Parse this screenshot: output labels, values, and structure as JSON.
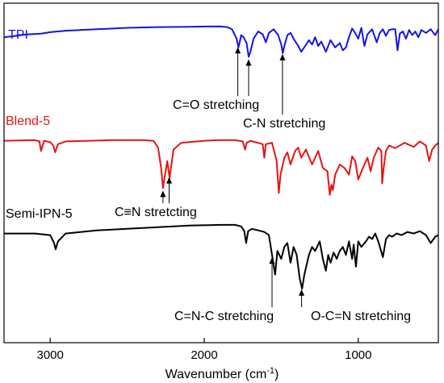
{
  "chart_data": {
    "type": "line",
    "title": "",
    "xlabel": "Wavenumber (cm",
    "xlabel_sup": "-1",
    "xlabel_close": ")",
    "ylabel": "",
    "xlim": [
      3300,
      480
    ],
    "x_reversed": true,
    "grid": false,
    "legend": "none",
    "xticks": [
      {
        "value": 3000,
        "label": "3000"
      },
      {
        "value": 2000,
        "label": "2000"
      },
      {
        "value": 1000,
        "label": "1000"
      }
    ],
    "series": [
      {
        "name": "TPI",
        "color": "#1414e6",
        "x": [
          3300,
          3150,
          3060,
          3000,
          2900,
          2700,
          2500,
          2300,
          2100,
          1900,
          1850,
          1820,
          1790,
          1778,
          1770,
          1760,
          1745,
          1725,
          1712,
          1700,
          1680,
          1650,
          1620,
          1600,
          1580,
          1550,
          1520,
          1500,
          1490,
          1480,
          1460,
          1440,
          1420,
          1390,
          1370,
          1345,
          1320,
          1300,
          1280,
          1260,
          1240,
          1210,
          1180,
          1150,
          1120,
          1100,
          1080,
          1060,
          1040,
          1020,
          1000,
          980,
          960,
          940,
          910,
          880,
          860,
          840,
          820,
          800,
          780,
          760,
          745,
          730,
          710,
          690,
          670,
          650,
          630,
          610,
          590,
          560,
          530,
          500,
          480
        ],
        "y": [
          0.82,
          0.86,
          0.87,
          0.89,
          0.91,
          0.93,
          0.95,
          0.96,
          0.965,
          0.97,
          0.96,
          0.93,
          0.8,
          0.68,
          0.75,
          0.85,
          0.82,
          0.74,
          0.55,
          0.62,
          0.8,
          0.9,
          0.86,
          0.75,
          0.88,
          0.93,
          0.85,
          0.72,
          0.6,
          0.7,
          0.85,
          0.88,
          0.8,
          0.7,
          0.62,
          0.7,
          0.78,
          0.72,
          0.82,
          0.7,
          0.76,
          0.62,
          0.78,
          0.68,
          0.74,
          0.64,
          0.68,
          0.82,
          0.94,
          0.88,
          0.8,
          0.95,
          0.7,
          0.86,
          0.93,
          0.75,
          0.88,
          0.93,
          0.84,
          0.92,
          0.93,
          0.93,
          0.64,
          0.87,
          0.9,
          0.8,
          0.92,
          0.85,
          0.9,
          0.82,
          0.92,
          0.88,
          0.93,
          0.85,
          0.93
        ]
      },
      {
        "name": "Blend-5",
        "color": "#e61414",
        "x": [
          3300,
          3100,
          3070,
          3060,
          3040,
          3000,
          2980,
          2968,
          2950,
          2900,
          2600,
          2400,
          2330,
          2300,
          2280,
          2268,
          2255,
          2240,
          2225,
          2200,
          2150,
          2000,
          1900,
          1800,
          1750,
          1735,
          1725,
          1700,
          1620,
          1610,
          1600,
          1560,
          1530,
          1516,
          1505,
          1480,
          1460,
          1440,
          1410,
          1390,
          1370,
          1340,
          1300,
          1260,
          1230,
          1200,
          1185,
          1175,
          1165,
          1150,
          1120,
          1090,
          1060,
          1040,
          1020,
          1000,
          970,
          940,
          920,
          900,
          870,
          850,
          845,
          835,
          820,
          800,
          760,
          700,
          640,
          600,
          560,
          540,
          520,
          500,
          480
        ],
        "y": [
          0.85,
          0.86,
          0.84,
          0.7,
          0.85,
          0.83,
          0.78,
          0.68,
          0.8,
          0.84,
          0.86,
          0.86,
          0.85,
          0.75,
          0.45,
          0.15,
          0.35,
          0.55,
          0.3,
          0.72,
          0.82,
          0.85,
          0.86,
          0.86,
          0.84,
          0.72,
          0.82,
          0.85,
          0.8,
          0.6,
          0.8,
          0.82,
          0.55,
          0.08,
          0.35,
          0.6,
          0.68,
          0.5,
          0.7,
          0.75,
          0.6,
          0.72,
          0.5,
          0.7,
          0.45,
          0.4,
          0.05,
          0.2,
          0.12,
          0.35,
          0.5,
          0.45,
          0.35,
          0.62,
          0.55,
          0.28,
          0.45,
          0.6,
          0.4,
          0.6,
          0.75,
          0.7,
          0.22,
          0.45,
          0.7,
          0.78,
          0.74,
          0.82,
          0.76,
          0.84,
          0.78,
          0.55,
          0.72,
          0.78,
          0.82
        ]
      },
      {
        "name": "Semi-IPN-5",
        "color": "#000000",
        "x": [
          3300,
          3100,
          3000,
          2975,
          2965,
          2950,
          2900,
          2700,
          2500,
          2300,
          2100,
          1900,
          1800,
          1760,
          1740,
          1728,
          1715,
          1690,
          1650,
          1610,
          1580,
          1560,
          1540,
          1525,
          1500,
          1480,
          1460,
          1440,
          1420,
          1400,
          1380,
          1365,
          1350,
          1320,
          1300,
          1280,
          1250,
          1230,
          1210,
          1195,
          1180,
          1160,
          1140,
          1120,
          1100,
          1080,
          1060,
          1040,
          1030,
          1015,
          1000,
          980,
          950,
          930,
          910,
          890,
          870,
          840,
          820,
          800,
          780,
          750,
          720,
          680,
          640,
          600,
          560,
          530,
          500,
          480
        ],
        "y": [
          0.82,
          0.82,
          0.8,
          0.7,
          0.62,
          0.72,
          0.82,
          0.86,
          0.88,
          0.9,
          0.92,
          0.93,
          0.93,
          0.91,
          0.85,
          0.7,
          0.85,
          0.88,
          0.86,
          0.84,
          0.8,
          0.55,
          0.3,
          0.6,
          0.5,
          0.65,
          0.7,
          0.45,
          0.65,
          0.55,
          0.25,
          0.12,
          0.3,
          0.55,
          0.65,
          0.6,
          0.72,
          0.5,
          0.35,
          0.55,
          0.45,
          0.58,
          0.5,
          0.6,
          0.65,
          0.55,
          0.72,
          0.5,
          0.68,
          0.4,
          0.72,
          0.65,
          0.72,
          0.78,
          0.75,
          0.82,
          0.72,
          0.52,
          0.75,
          0.8,
          0.78,
          0.82,
          0.8,
          0.84,
          0.82,
          0.85,
          0.8,
          0.7,
          0.78,
          0.8
        ]
      }
    ],
    "annotations": [
      {
        "id": "co",
        "text": "C=O stretching",
        "series": 0,
        "arrows": [
          1782,
          1712
        ]
      },
      {
        "id": "cn",
        "text": "C-N stretching",
        "series": 0,
        "arrows": [
          1492
        ]
      },
      {
        "id": "cn-triple",
        "text": "C≡N stretcting",
        "series": 1,
        "arrows": [
          2268,
          2228
        ]
      },
      {
        "id": "cnc",
        "text": "C=N-C stretching",
        "series": 2,
        "arrows": [
          1560
        ]
      },
      {
        "id": "ocn",
        "text": "O-C=N stretching",
        "series": 2,
        "arrows": [
          1368
        ]
      }
    ]
  }
}
